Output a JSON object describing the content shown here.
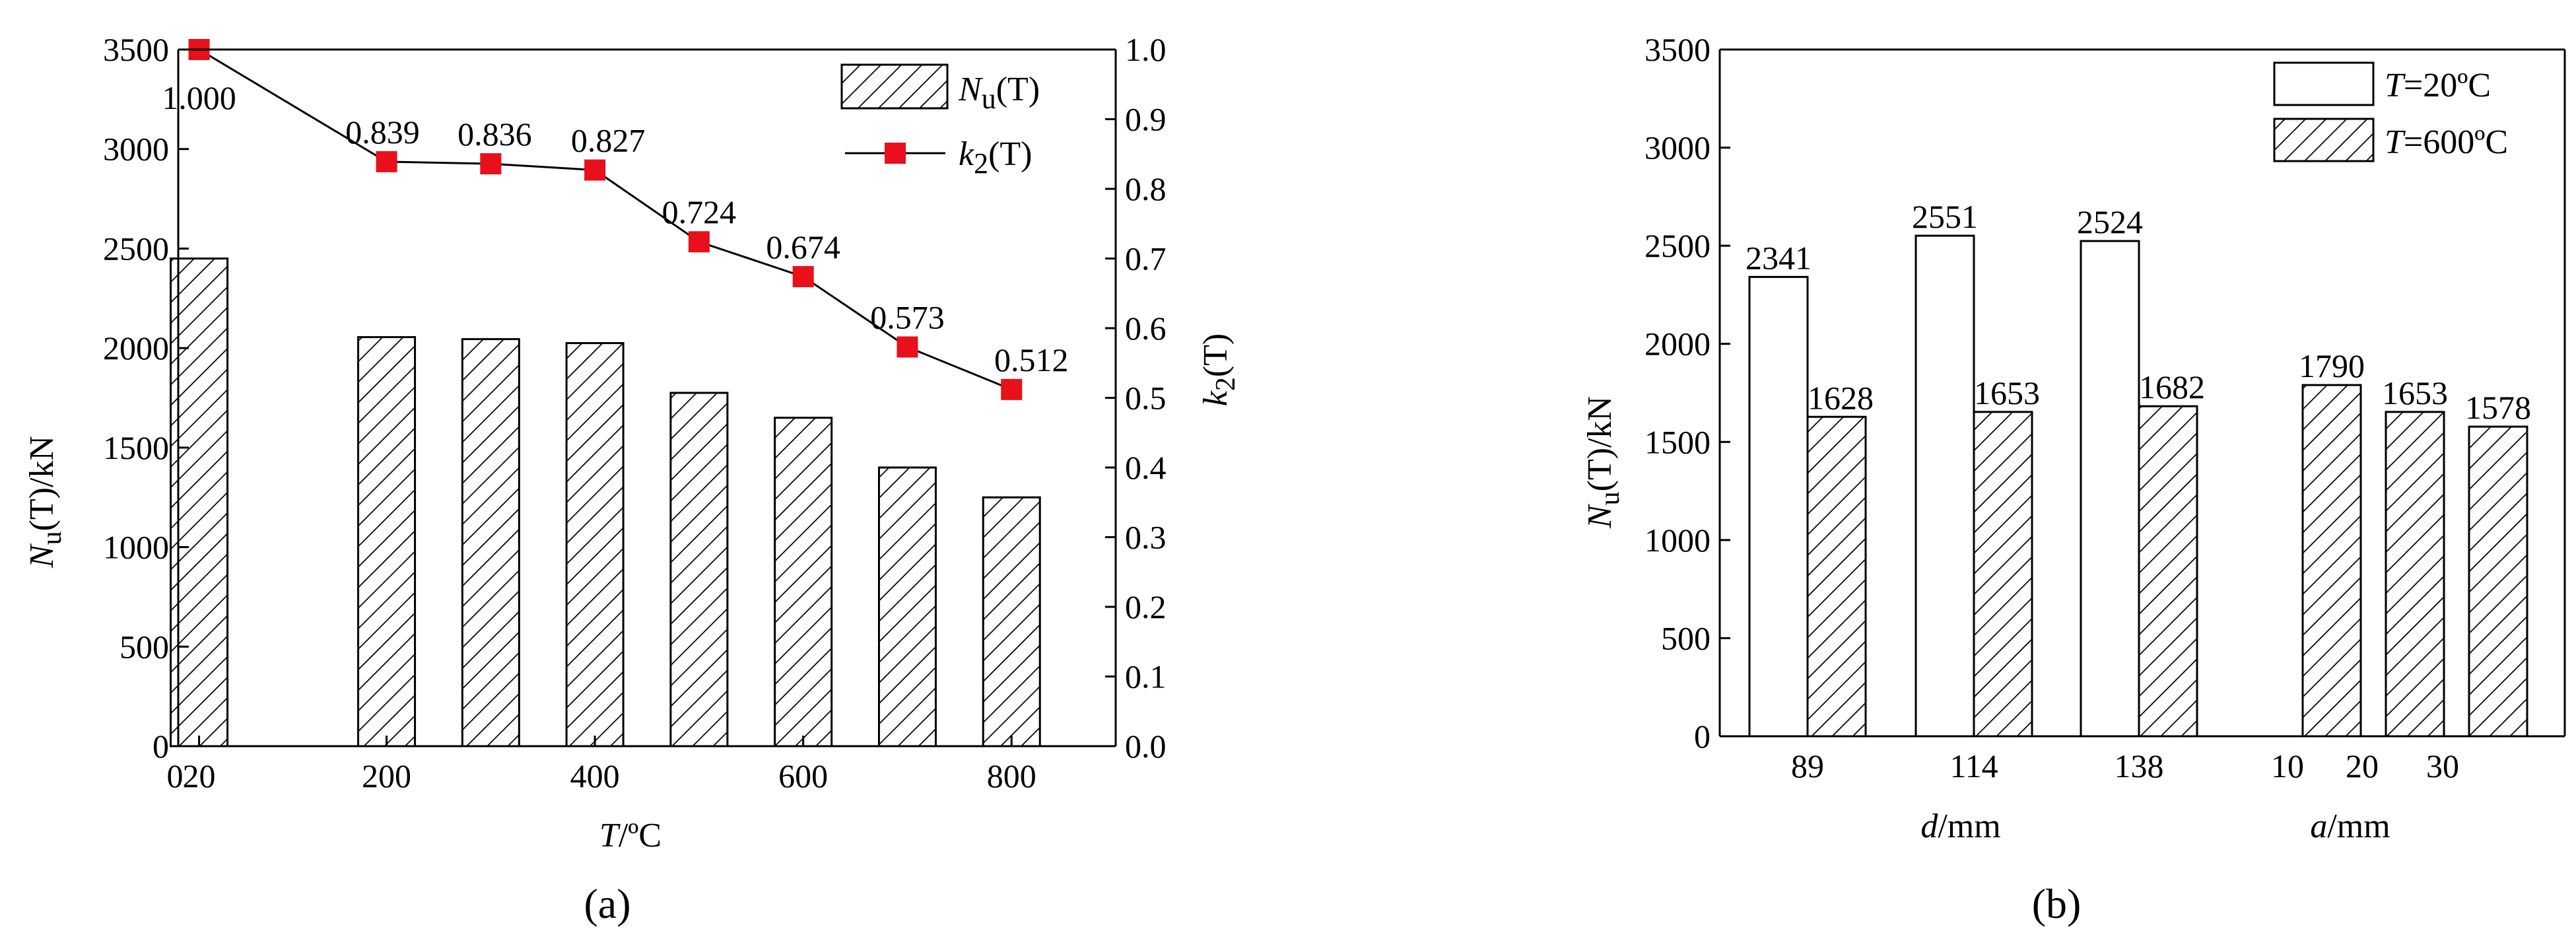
{
  "chart_data": [
    {
      "panel_label": "(a)",
      "type": "bar",
      "x": [
        20,
        200,
        300,
        400,
        500,
        600,
        700,
        800
      ],
      "x_ticks": [
        "0",
        "20",
        "200",
        "400",
        "600",
        "800"
      ],
      "xlim": [
        0,
        900
      ],
      "xlabel": {
        "sym": "T",
        "unit": "/ºC"
      },
      "ylabel": {
        "sym": "N",
        "sub": "u",
        "mid": "(T)",
        "unit": "/kN"
      },
      "ylim": [
        0,
        3500
      ],
      "y_ticks": [
        0,
        500,
        1000,
        1500,
        2000,
        2500,
        3000,
        3500
      ],
      "y2label": {
        "sym": "k",
        "sub": "2",
        "mid": "(T)"
      },
      "y2lim": [
        0,
        1.0
      ],
      "y2_ticks": [
        "0.0",
        "0.1",
        "0.2",
        "0.3",
        "0.4",
        "0.5",
        "0.6",
        "0.7",
        "0.8",
        "0.9",
        "1.0"
      ],
      "series": [
        {
          "name": "Nu(T)",
          "kind": "bar",
          "pattern": "hatch",
          "values": [
            2450,
            2055,
            2045,
            2025,
            1775,
            1650,
            1400,
            1250
          ]
        },
        {
          "name": "k2(T)",
          "kind": "line",
          "axis": "right",
          "color": "#e8101a",
          "values": [
            1.0,
            0.839,
            0.836,
            0.827,
            0.724,
            0.674,
            0.573,
            0.512
          ],
          "labels": [
            "1.000",
            "0.839",
            "0.836",
            "0.827",
            "0.724",
            "0.674",
            "0.573",
            "0.512"
          ]
        }
      ],
      "legend": {
        "placement": "top-right",
        "items": [
          {
            "sym": "N",
            "sub": "u",
            "mid": "(T)"
          },
          {
            "sym": "k",
            "sub": "2",
            "mid": "(T)"
          }
        ]
      }
    },
    {
      "panel_label": "(b)",
      "type": "bar",
      "ylabel": {
        "sym": "N",
        "sub": "u",
        "mid": "(T)",
        "unit": "/kN"
      },
      "ylim": [
        0,
        3500
      ],
      "y_ticks": [
        0,
        500,
        1000,
        1500,
        2000,
        2500,
        3000,
        3500
      ],
      "groups": [
        {
          "name": "d",
          "unit": "/mm",
          "ticks": [
            "89",
            "114",
            "138"
          ],
          "values_20": [
            2341,
            2551,
            2524
          ],
          "values_600": [
            1628,
            1653,
            1682
          ]
        },
        {
          "name": "a",
          "unit": "/mm",
          "ticks": [
            "10",
            "20",
            "30"
          ],
          "values_600": [
            1790,
            1653,
            1578
          ]
        }
      ],
      "series": [
        {
          "name": "T=20ºC",
          "kind": "bar",
          "pattern": "open"
        },
        {
          "name": "T=600ºC",
          "kind": "bar",
          "pattern": "hatch"
        }
      ],
      "legend": {
        "placement": "top-right",
        "items": [
          {
            "sym": "T",
            "rest": "=20ºC"
          },
          {
            "sym": "T",
            "rest": "=600ºC"
          }
        ]
      }
    }
  ],
  "colors": {
    "axis": "#000000",
    "line_marker": "#e8101a",
    "bar_fill": "#ffffff"
  }
}
